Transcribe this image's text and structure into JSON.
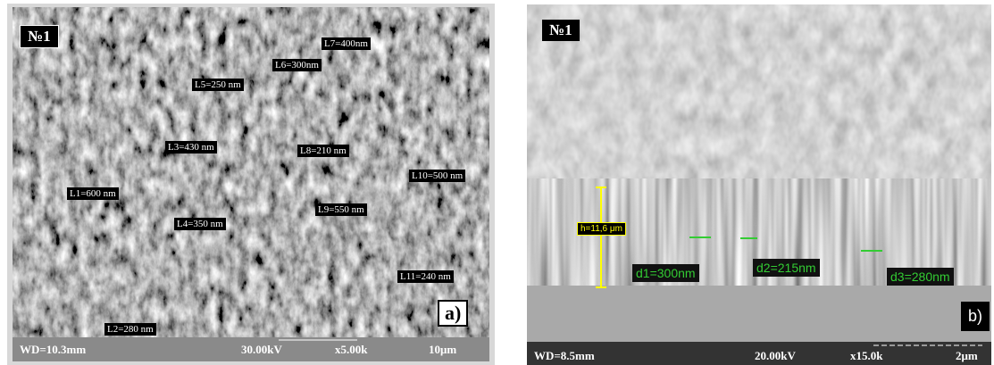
{
  "panels": [
    {
      "sample": "№1",
      "panel_label": "a)",
      "measurements": [
        "L7=400nm",
        "L6=300nm",
        "L5=250 nm",
        "L3=430 nm",
        "L8=210 nm",
        "L10=500 nm",
        "L1=600 nm",
        "L9=550 nm",
        "L4=350 nm",
        "L11=240 nm",
        "L2=280 nm"
      ],
      "footer": [
        "WD=10.3mm",
        "30.00kV",
        "x5.00k",
        "10μm"
      ]
    },
    {
      "sample": "№1",
      "panel_label": "b)",
      "height_label": "h=11,6 μm",
      "measurements": [
        "d1=300nm",
        "d2=215nm",
        "d3=280nm"
      ],
      "footer": [
        "WD=8.5mm",
        "20.00kV",
        "x15.0k",
        "2μm"
      ]
    }
  ]
}
